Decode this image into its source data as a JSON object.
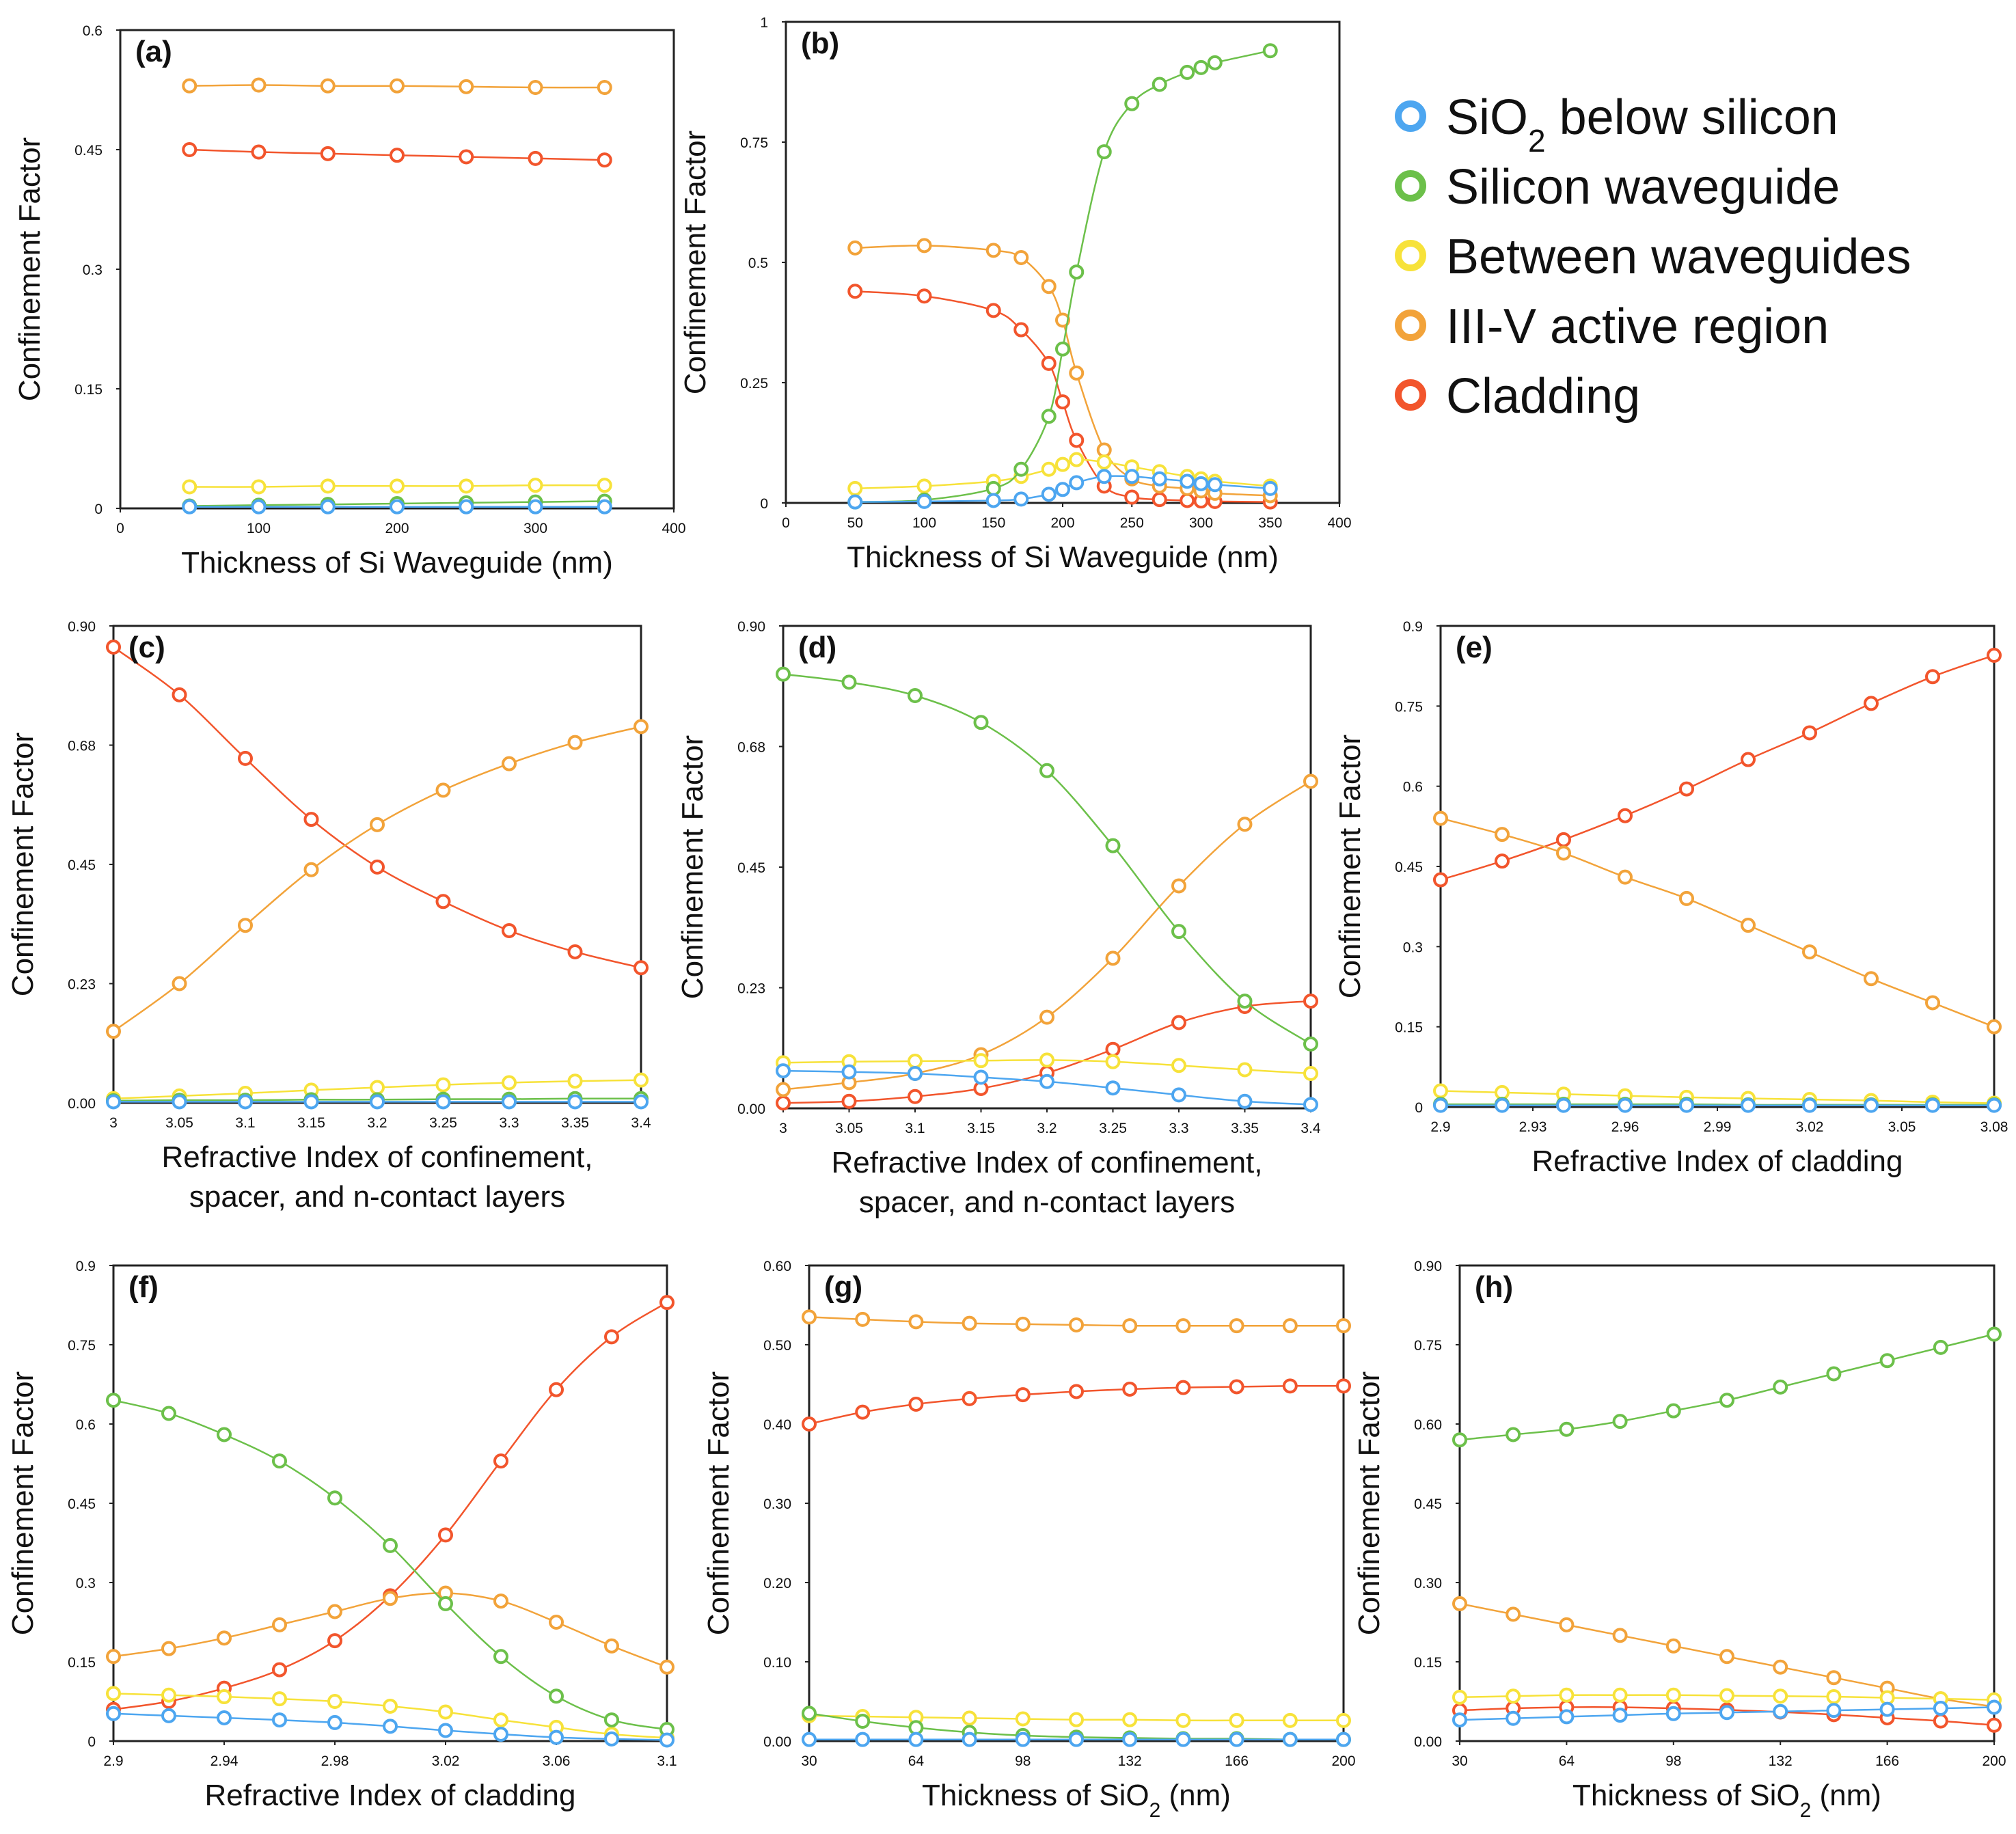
{
  "figure": {
    "legend": [
      {
        "text": "SiO",
        "sub": "2",
        "rest": " below silicon",
        "series": "sio2",
        "color": "#4da6f0"
      },
      {
        "text": "Silicon waveguide",
        "series": "si",
        "color": "#6cc04a"
      },
      {
        "text": "Between waveguides",
        "series": "btw",
        "color": "#f7e23a"
      },
      {
        "text": "III-V active region",
        "series": "iiiv",
        "color": "#f2a33a"
      },
      {
        "text": "Cladding",
        "series": "clad",
        "color": "#f2552c"
      }
    ]
  },
  "chart_data": [
    {
      "id": "a",
      "type": "line",
      "panel_label": "(a)",
      "xlabel": "Thickness of Si Waveguide (nm)",
      "ylabel": "Confinement Factor",
      "xlim": [
        0,
        400
      ],
      "ylim": [
        0,
        0.6
      ],
      "xticks": [
        "0",
        "100",
        "200",
        "300",
        "400"
      ],
      "xtick_values": [
        0,
        100,
        200,
        300,
        400
      ],
      "yticks": [
        "0",
        "0.15",
        "0.3",
        "0.45",
        "0.6"
      ],
      "ytick_values": [
        0,
        0.15,
        0.3,
        0.45,
        0.6
      ],
      "x": [
        50,
        100,
        150,
        200,
        250,
        300,
        350
      ],
      "series": [
        {
          "name": "sio2",
          "values": [
            0.002,
            0.002,
            0.002,
            0.002,
            0.002,
            0.002,
            0.002
          ]
        },
        {
          "name": "si",
          "values": [
            0.003,
            0.004,
            0.005,
            0.006,
            0.007,
            0.008,
            0.009
          ]
        },
        {
          "name": "btw",
          "values": [
            0.027,
            0.027,
            0.028,
            0.028,
            0.028,
            0.029,
            0.029
          ]
        },
        {
          "name": "iiiv",
          "values": [
            0.53,
            0.531,
            0.53,
            0.53,
            0.529,
            0.528,
            0.528
          ]
        },
        {
          "name": "clad",
          "values": [
            0.45,
            0.447,
            0.445,
            0.443,
            0.441,
            0.439,
            0.437
          ]
        }
      ]
    },
    {
      "id": "b",
      "type": "line",
      "panel_label": "(b)",
      "xlabel": "Thickness of Si Waveguide (nm)",
      "ylabel": "Confinement Factor",
      "xlim": [
        0,
        400
      ],
      "ylim": [
        0,
        1
      ],
      "xticks": [
        "0",
        "50",
        "100",
        "150",
        "200",
        "250",
        "300",
        "350",
        "400"
      ],
      "xtick_values": [
        0,
        50,
        100,
        150,
        200,
        250,
        300,
        350,
        400
      ],
      "yticks": [
        "0",
        "0.25",
        "0.5",
        "0.75",
        "1"
      ],
      "ytick_values": [
        0,
        0.25,
        0.5,
        0.75,
        1
      ],
      "x": [
        50,
        100,
        150,
        170,
        190,
        200,
        210,
        230,
        250,
        270,
        290,
        300,
        310,
        350
      ],
      "series": [
        {
          "name": "sio2",
          "values": [
            0.002,
            0.003,
            0.005,
            0.008,
            0.018,
            0.028,
            0.042,
            0.055,
            0.055,
            0.05,
            0.045,
            0.04,
            0.038,
            0.03
          ]
        },
        {
          "name": "si",
          "values": [
            0.002,
            0.006,
            0.03,
            0.07,
            0.18,
            0.32,
            0.48,
            0.73,
            0.83,
            0.87,
            0.895,
            0.905,
            0.915,
            0.94
          ]
        },
        {
          "name": "btw",
          "values": [
            0.03,
            0.035,
            0.045,
            0.055,
            0.07,
            0.08,
            0.09,
            0.085,
            0.075,
            0.065,
            0.055,
            0.05,
            0.045,
            0.035
          ]
        },
        {
          "name": "iiiv",
          "values": [
            0.53,
            0.535,
            0.525,
            0.51,
            0.45,
            0.38,
            0.27,
            0.11,
            0.05,
            0.035,
            0.03,
            0.025,
            0.02,
            0.015
          ]
        },
        {
          "name": "clad",
          "values": [
            0.44,
            0.43,
            0.4,
            0.36,
            0.29,
            0.21,
            0.13,
            0.035,
            0.012,
            0.007,
            0.005,
            0.004,
            0.003,
            0.002
          ]
        }
      ]
    },
    {
      "id": "c",
      "type": "line",
      "panel_label": "(c)",
      "xlabel": "Refractive Index of confinement,",
      "xlabel2": "spacer, and n-contact layers",
      "ylabel": "Confinement Factor",
      "xlim": [
        3,
        3.4
      ],
      "ylim": [
        0,
        0.9
      ],
      "xticks": [
        "3",
        "3.05",
        "3.1",
        "3.15",
        "3.2",
        "3.25",
        "3.3",
        "3.35",
        "3.4"
      ],
      "xtick_values": [
        3,
        3.05,
        3.1,
        3.15,
        3.2,
        3.25,
        3.3,
        3.35,
        3.4
      ],
      "yticks": [
        "0.00",
        "0.23",
        "0.45",
        "0.68",
        "0.90"
      ],
      "ytick_values": [
        0,
        0.225,
        0.45,
        0.675,
        0.9
      ],
      "x": [
        3,
        3.05,
        3.1,
        3.15,
        3.2,
        3.25,
        3.3,
        3.35,
        3.4
      ],
      "series": [
        {
          "name": "sio2",
          "values": [
            0.002,
            0.002,
            0.002,
            0.002,
            0.002,
            0.002,
            0.002,
            0.002,
            0.002
          ]
        },
        {
          "name": "si",
          "values": [
            0.004,
            0.005,
            0.005,
            0.006,
            0.006,
            0.007,
            0.007,
            0.008,
            0.008
          ]
        },
        {
          "name": "btw",
          "values": [
            0.008,
            0.013,
            0.018,
            0.024,
            0.029,
            0.034,
            0.038,
            0.041,
            0.043
          ]
        },
        {
          "name": "iiiv",
          "values": [
            0.135,
            0.225,
            0.335,
            0.44,
            0.525,
            0.59,
            0.64,
            0.68,
            0.71
          ]
        },
        {
          "name": "clad",
          "values": [
            0.86,
            0.77,
            0.65,
            0.535,
            0.445,
            0.38,
            0.325,
            0.285,
            0.255
          ]
        }
      ]
    },
    {
      "id": "d",
      "type": "line",
      "panel_label": "(d)",
      "xlabel": "Refractive Index of confinement,",
      "xlabel2": "spacer, and n-contact layers",
      "ylabel": "Confinement Factor",
      "xlim": [
        3,
        3.4
      ],
      "ylim": [
        0,
        0.9
      ],
      "xticks": [
        "3",
        "3.05",
        "3.1",
        "3.15",
        "3.2",
        "3.25",
        "3.3",
        "3.35",
        "3.4"
      ],
      "xtick_values": [
        3,
        3.05,
        3.1,
        3.15,
        3.2,
        3.25,
        3.3,
        3.35,
        3.4
      ],
      "yticks": [
        "0.00",
        "0.23",
        "0.45",
        "0.68",
        "0.90"
      ],
      "ytick_values": [
        0,
        0.225,
        0.45,
        0.675,
        0.9
      ],
      "x": [
        3,
        3.05,
        3.1,
        3.15,
        3.2,
        3.25,
        3.3,
        3.35,
        3.4
      ],
      "series": [
        {
          "name": "sio2",
          "values": [
            0.07,
            0.068,
            0.065,
            0.058,
            0.05,
            0.038,
            0.025,
            0.013,
            0.007
          ]
        },
        {
          "name": "si",
          "values": [
            0.81,
            0.795,
            0.77,
            0.72,
            0.63,
            0.49,
            0.33,
            0.2,
            0.12
          ]
        },
        {
          "name": "btw",
          "values": [
            0.085,
            0.087,
            0.088,
            0.089,
            0.09,
            0.087,
            0.08,
            0.072,
            0.065
          ]
        },
        {
          "name": "iiiv",
          "values": [
            0.035,
            0.048,
            0.065,
            0.1,
            0.17,
            0.28,
            0.415,
            0.53,
            0.61
          ]
        },
        {
          "name": "clad",
          "values": [
            0.01,
            0.013,
            0.022,
            0.037,
            0.066,
            0.11,
            0.16,
            0.19,
            0.2
          ]
        }
      ]
    },
    {
      "id": "e",
      "type": "line",
      "panel_label": "(e)",
      "xlabel": "Refractive Index of cladding",
      "ylabel": "Confinement Factor",
      "xlim": [
        2.9,
        3.08
      ],
      "ylim": [
        0,
        0.9
      ],
      "xticks": [
        "2.9",
        "2.93",
        "2.96",
        "2.99",
        "3.02",
        "3.05",
        "3.08"
      ],
      "xtick_values": [
        2.9,
        2.93,
        2.96,
        2.99,
        3.02,
        3.05,
        3.08
      ],
      "yticks": [
        "0",
        "0.15",
        "0.3",
        "0.45",
        "0.6",
        "0.75",
        "0.9"
      ],
      "ytick_values": [
        0,
        0.15,
        0.3,
        0.45,
        0.6,
        0.75,
        0.9
      ],
      "x": [
        2.9,
        2.92,
        2.94,
        2.96,
        2.98,
        3.0,
        3.02,
        3.04,
        3.06,
        3.08
      ],
      "series": [
        {
          "name": "sio2",
          "values": [
            0.003,
            0.003,
            0.003,
            0.003,
            0.003,
            0.003,
            0.003,
            0.003,
            0.003,
            0.003
          ]
        },
        {
          "name": "si",
          "values": [
            0.005,
            0.005,
            0.005,
            0.005,
            0.005,
            0.004,
            0.004,
            0.004,
            0.004,
            0.004
          ]
        },
        {
          "name": "btw",
          "values": [
            0.03,
            0.027,
            0.024,
            0.021,
            0.018,
            0.016,
            0.014,
            0.012,
            0.009,
            0.007
          ]
        },
        {
          "name": "iiiv",
          "values": [
            0.54,
            0.51,
            0.475,
            0.43,
            0.39,
            0.34,
            0.29,
            0.24,
            0.195,
            0.15
          ]
        },
        {
          "name": "clad",
          "values": [
            0.425,
            0.46,
            0.5,
            0.545,
            0.595,
            0.65,
            0.7,
            0.755,
            0.805,
            0.845
          ]
        }
      ]
    },
    {
      "id": "f",
      "type": "line",
      "panel_label": "(f)",
      "xlabel": "Refractive Index of cladding",
      "ylabel": "Confinement Factor",
      "xlim": [
        2.9,
        3.1
      ],
      "ylim": [
        0,
        0.9
      ],
      "xticks": [
        "2.9",
        "2.94",
        "2.98",
        "3.02",
        "3.06",
        "3.1"
      ],
      "xtick_values": [
        2.9,
        2.94,
        2.98,
        3.02,
        3.06,
        3.1
      ],
      "yticks": [
        "0",
        "0.15",
        "0.3",
        "0.45",
        "0.6",
        "0.75",
        "0.9"
      ],
      "ytick_values": [
        0,
        0.15,
        0.3,
        0.45,
        0.6,
        0.75,
        0.9
      ],
      "x": [
        2.9,
        2.92,
        2.94,
        2.96,
        2.98,
        3.0,
        3.02,
        3.04,
        3.06,
        3.08,
        3.1
      ],
      "series": [
        {
          "name": "sio2",
          "values": [
            0.052,
            0.048,
            0.044,
            0.04,
            0.035,
            0.028,
            0.02,
            0.013,
            0.007,
            0.004,
            0.002
          ]
        },
        {
          "name": "si",
          "values": [
            0.645,
            0.62,
            0.58,
            0.53,
            0.46,
            0.37,
            0.26,
            0.16,
            0.085,
            0.04,
            0.022
          ]
        },
        {
          "name": "btw",
          "values": [
            0.09,
            0.087,
            0.084,
            0.08,
            0.075,
            0.066,
            0.055,
            0.04,
            0.026,
            0.013,
            0.006
          ]
        },
        {
          "name": "iiiv",
          "values": [
            0.16,
            0.175,
            0.195,
            0.22,
            0.245,
            0.27,
            0.28,
            0.265,
            0.225,
            0.18,
            0.14
          ]
        },
        {
          "name": "clad",
          "values": [
            0.06,
            0.075,
            0.1,
            0.135,
            0.19,
            0.275,
            0.39,
            0.53,
            0.665,
            0.765,
            0.83
          ]
        }
      ]
    },
    {
      "id": "g",
      "type": "line",
      "panel_label": "(g)",
      "xlabel": "Thickness of SiO",
      "xlabel_sub": "2",
      "xlabel_rest": " (nm)",
      "ylabel": "Confinement Factor",
      "xlim": [
        30,
        200
      ],
      "ylim": [
        0,
        0.6
      ],
      "xticks": [
        "30",
        "64",
        "98",
        "132",
        "166",
        "200"
      ],
      "xtick_values": [
        30,
        64,
        98,
        132,
        166,
        200
      ],
      "yticks": [
        "0.00",
        "0.10",
        "0.20",
        "0.30",
        "0.40",
        "0.50",
        "0.60"
      ],
      "ytick_values": [
        0,
        0.1,
        0.2,
        0.3,
        0.4,
        0.5,
        0.6
      ],
      "x": [
        30,
        47,
        64,
        81,
        98,
        115,
        132,
        149,
        166,
        183,
        200
      ],
      "series": [
        {
          "name": "sio2",
          "values": [
            0.002,
            0.002,
            0.002,
            0.002,
            0.002,
            0.002,
            0.002,
            0.002,
            0.002,
            0.002,
            0.002
          ]
        },
        {
          "name": "si",
          "values": [
            0.035,
            0.025,
            0.017,
            0.011,
            0.007,
            0.005,
            0.004,
            0.003,
            0.003,
            0.002,
            0.002
          ]
        },
        {
          "name": "btw",
          "values": [
            0.032,
            0.031,
            0.03,
            0.029,
            0.028,
            0.027,
            0.027,
            0.026,
            0.026,
            0.026,
            0.026
          ]
        },
        {
          "name": "iiiv",
          "values": [
            0.535,
            0.532,
            0.529,
            0.527,
            0.526,
            0.525,
            0.524,
            0.524,
            0.524,
            0.524,
            0.524
          ]
        },
        {
          "name": "clad",
          "values": [
            0.4,
            0.415,
            0.425,
            0.432,
            0.437,
            0.441,
            0.444,
            0.446,
            0.447,
            0.448,
            0.448
          ]
        }
      ]
    },
    {
      "id": "h",
      "type": "line",
      "panel_label": "(h)",
      "xlabel": "Thickness of SiO",
      "xlabel_sub": "2",
      "xlabel_rest": " (nm)",
      "ylabel": "Confinement Factor",
      "xlim": [
        30,
        200
      ],
      "ylim": [
        0,
        0.9
      ],
      "xticks": [
        "30",
        "64",
        "98",
        "132",
        "166",
        "200"
      ],
      "xtick_values": [
        30,
        64,
        98,
        132,
        166,
        200
      ],
      "yticks": [
        "0.00",
        "0.15",
        "0.30",
        "0.45",
        "0.60",
        "0.75",
        "0.90"
      ],
      "ytick_values": [
        0,
        0.15,
        0.3,
        0.45,
        0.6,
        0.75,
        0.9
      ],
      "x": [
        30,
        47,
        64,
        81,
        98,
        115,
        132,
        149,
        166,
        183,
        200
      ],
      "series": [
        {
          "name": "sio2",
          "values": [
            0.04,
            0.043,
            0.046,
            0.049,
            0.052,
            0.054,
            0.056,
            0.058,
            0.06,
            0.062,
            0.064
          ]
        },
        {
          "name": "si",
          "values": [
            0.57,
            0.58,
            0.59,
            0.605,
            0.625,
            0.645,
            0.67,
            0.695,
            0.72,
            0.745,
            0.77
          ]
        },
        {
          "name": "btw",
          "values": [
            0.083,
            0.085,
            0.087,
            0.087,
            0.087,
            0.086,
            0.085,
            0.084,
            0.082,
            0.08,
            0.078
          ]
        },
        {
          "name": "iiiv",
          "values": [
            0.26,
            0.24,
            0.22,
            0.2,
            0.18,
            0.16,
            0.14,
            0.12,
            0.1,
            0.08,
            0.065
          ]
        },
        {
          "name": "clad",
          "values": [
            0.058,
            0.062,
            0.064,
            0.064,
            0.062,
            0.059,
            0.055,
            0.05,
            0.044,
            0.038,
            0.03
          ]
        }
      ]
    }
  ]
}
